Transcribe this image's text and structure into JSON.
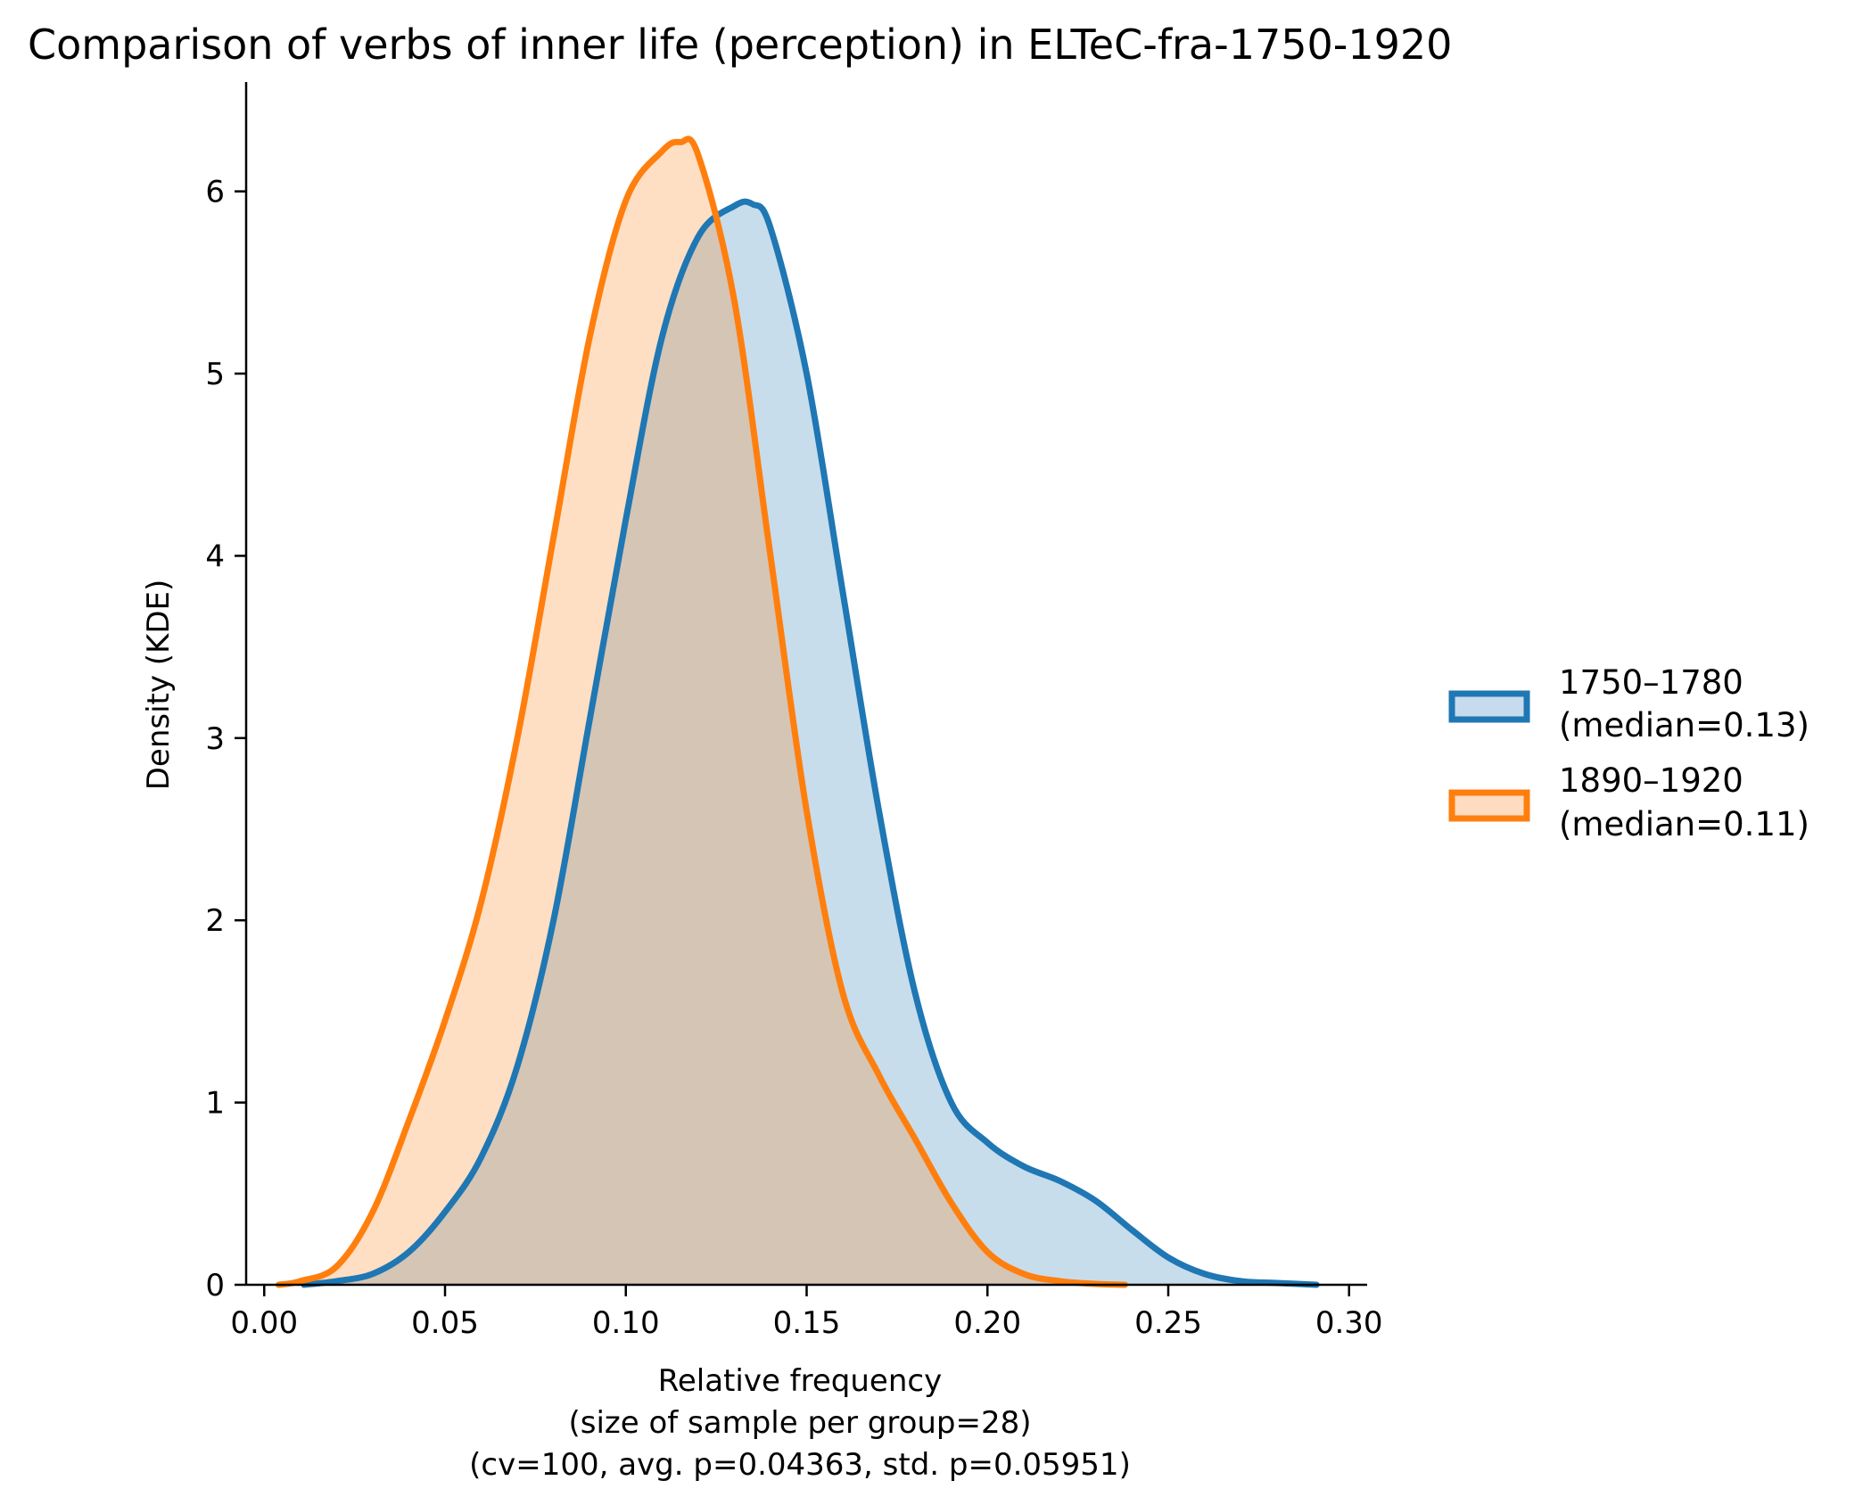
{
  "chart_data": {
    "type": "area",
    "title": "Comparison of verbs of inner life (perception) in ELTeC-fra-1750-1920",
    "xlabel": "Relative frequency",
    "xlabel_lines": [
      "(size of sample per group=28)",
      "(cv=100, avg. p=0.04363, std. p=0.05951)"
    ],
    "ylabel": "Density (KDE)",
    "xlim": [
      -0.005,
      0.305
    ],
    "ylim": [
      0,
      6.6
    ],
    "xticks": [
      0.0,
      0.05,
      0.1,
      0.15,
      0.2,
      0.25,
      0.3
    ],
    "xtick_labels": [
      "0.00",
      "0.05",
      "0.10",
      "0.15",
      "0.20",
      "0.25",
      "0.30"
    ],
    "yticks": [
      0,
      1,
      2,
      3,
      4,
      5,
      6
    ],
    "ytick_labels": [
      "0",
      "1",
      "2",
      "3",
      "4",
      "5",
      "6"
    ],
    "grid": false,
    "legend_position": "right",
    "series": [
      {
        "name": "1750–1780",
        "legend_lines": [
          "1750–1780",
          "(median=0.13)"
        ],
        "color": "#1f77b4",
        "fill": "#c6dbed",
        "x": [
          0.011,
          0.02,
          0.03,
          0.04,
          0.05,
          0.06,
          0.07,
          0.08,
          0.09,
          0.1,
          0.11,
          0.12,
          0.13,
          0.135,
          0.14,
          0.15,
          0.16,
          0.17,
          0.18,
          0.19,
          0.2,
          0.21,
          0.22,
          0.23,
          0.24,
          0.25,
          0.26,
          0.27,
          0.28,
          0.291
        ],
        "y": [
          0.0,
          0.02,
          0.06,
          0.18,
          0.4,
          0.7,
          1.2,
          2.0,
          3.1,
          4.2,
          5.2,
          5.75,
          5.92,
          5.93,
          5.8,
          5.0,
          3.8,
          2.6,
          1.6,
          1.0,
          0.78,
          0.65,
          0.57,
          0.46,
          0.3,
          0.15,
          0.06,
          0.02,
          0.01,
          0.0
        ]
      },
      {
        "name": "1890–1920",
        "legend_lines": [
          "1890–1920",
          "(median=0.11)"
        ],
        "color": "#ff7f0e",
        "fill": "#ffdcc0",
        "x": [
          0.004,
          0.01,
          0.02,
          0.03,
          0.04,
          0.05,
          0.06,
          0.07,
          0.08,
          0.09,
          0.1,
          0.11,
          0.115,
          0.12,
          0.13,
          0.14,
          0.15,
          0.16,
          0.17,
          0.18,
          0.19,
          0.2,
          0.21,
          0.22,
          0.23,
          0.238
        ],
        "y": [
          0.0,
          0.02,
          0.1,
          0.4,
          0.9,
          1.45,
          2.1,
          3.0,
          4.1,
          5.2,
          5.95,
          6.22,
          6.27,
          6.2,
          5.4,
          4.0,
          2.6,
          1.6,
          1.15,
          0.8,
          0.45,
          0.18,
          0.06,
          0.02,
          0.005,
          0.0
        ]
      }
    ]
  }
}
